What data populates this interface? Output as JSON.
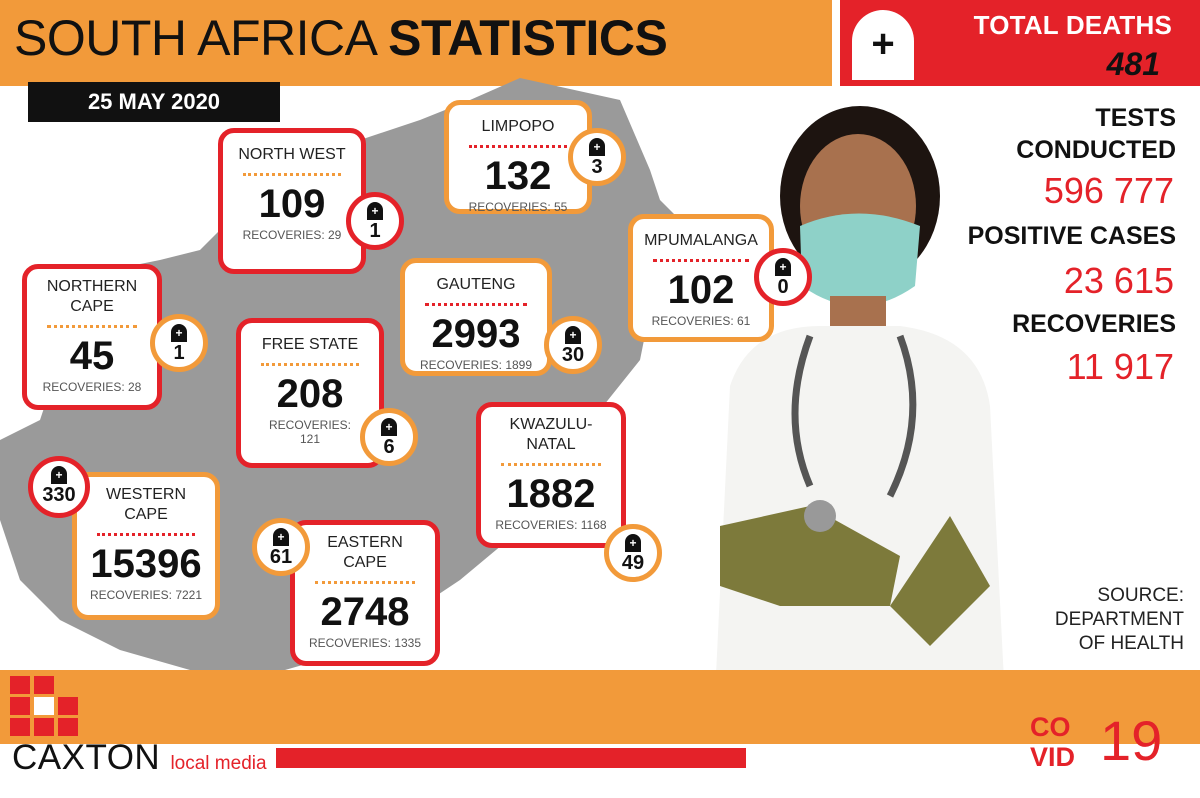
{
  "header": {
    "title_plain": "SOUTH AFRICA ",
    "title_bold": "STATISTICS",
    "date": "25 MAY 2020"
  },
  "totals": {
    "deaths_label": "TOTAL DEATHS",
    "deaths_value": "481",
    "tests_label_1": "TESTS",
    "tests_label_2": "CONDUCTED",
    "tests_value": "596 777",
    "positive_label": "POSITIVE CASES",
    "positive_value": "23 615",
    "recoveries_label": "RECOVERIES",
    "recoveries_value": "11 917"
  },
  "source": {
    "line1": "SOURCE:",
    "line2": "DEPARTMENT",
    "line3": "OF HEALTH"
  },
  "brand": {
    "name": "CAXTON",
    "sub": "local media"
  },
  "covid_badge": {
    "co": "CO",
    "vid": "VID",
    "num": "19"
  },
  "icon": {
    "plus": "+",
    "tomb_cross": "+"
  },
  "colors": {
    "orange": "#f29a3a",
    "red": "#e42229",
    "map_grey": "#9a9a9a"
  },
  "provinces": {
    "north_west": {
      "name": "NORTH WEST",
      "cases": "109",
      "recoveries": "RECOVERIES: 29",
      "deaths": "1"
    },
    "limpopo": {
      "name": "LIMPOPO",
      "cases": "132",
      "recoveries": "RECOVERIES: 55",
      "deaths": "3"
    },
    "mpumalanga": {
      "name": "MPUMALANGA",
      "cases": "102",
      "recoveries": "RECOVERIES: 61",
      "deaths": "0"
    },
    "northern_cape": {
      "name_1": "NORTHERN",
      "name_2": "CAPE",
      "cases": "45",
      "recoveries": "RECOVERIES: 28",
      "deaths": "1"
    },
    "gauteng": {
      "name": "GAUTENG",
      "cases": "2993",
      "recoveries": "RECOVERIES: 1899",
      "deaths": "30"
    },
    "free_state": {
      "name": "FREE STATE",
      "cases": "208",
      "recoveries_1": "RECOVERIES:",
      "recoveries_2": "121",
      "deaths": "6"
    },
    "kwazulu_natal": {
      "name_1": "KWAZULU-",
      "name_2": "NATAL",
      "cases": "1882",
      "recoveries": "RECOVERIES: 1168",
      "deaths": "49"
    },
    "western_cape": {
      "name_1": "WESTERN",
      "name_2": "CAPE",
      "cases": "15396",
      "recoveries": "RECOVERIES: 7221",
      "deaths": "330"
    },
    "eastern_cape": {
      "name_1": "EASTERN",
      "name_2": "CAPE",
      "cases": "2748",
      "recoveries": "RECOVERIES: 1335",
      "deaths": "61"
    }
  }
}
